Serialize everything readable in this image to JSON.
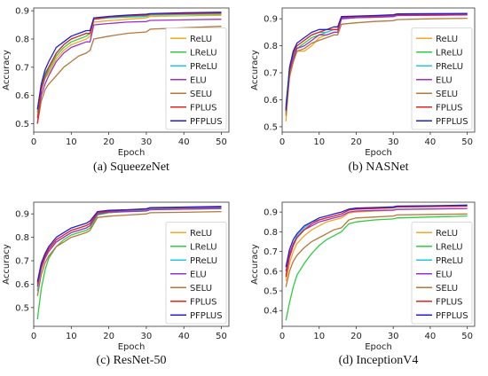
{
  "colors": {
    "ReLU": "#f5a623",
    "LReLU": "#2ecc40",
    "PReLU": "#22c7e8",
    "ELU": "#9b30c8",
    "SELU": "#b5773a",
    "FPLUS": "#e8211d",
    "PFPLUS": "#1f1fd0"
  },
  "chart_data": [
    {
      "type": "line",
      "caption": "(a) SqueezeNet",
      "xlabel": "Epoch",
      "ylabel": "Accuracy",
      "xlim": [
        0,
        52
      ],
      "ylim": [
        0.47,
        0.91
      ],
      "xticks": [
        0,
        10,
        20,
        30,
        40,
        50
      ],
      "yticks": [
        0.5,
        0.6,
        0.7,
        0.8,
        0.9
      ],
      "ytick_labels": [
        "0.5",
        "0.6",
        "0.7",
        "0.8",
        "0.9"
      ],
      "legend_position": "right",
      "x": [
        1,
        2,
        3,
        4,
        6,
        8,
        10,
        12,
        14,
        15,
        16,
        20,
        25,
        30,
        31,
        40,
        50
      ],
      "series": [
        {
          "name": "ReLU",
          "values": [
            0.53,
            0.62,
            0.66,
            0.68,
            0.73,
            0.76,
            0.78,
            0.79,
            0.8,
            0.81,
            0.86,
            0.865,
            0.87,
            0.875,
            0.88,
            0.882,
            0.884
          ]
        },
        {
          "name": "LReLU",
          "values": [
            0.54,
            0.62,
            0.66,
            0.69,
            0.74,
            0.77,
            0.79,
            0.8,
            0.81,
            0.82,
            0.87,
            0.875,
            0.878,
            0.88,
            0.885,
            0.887,
            0.888
          ]
        },
        {
          "name": "PReLU",
          "values": [
            0.55,
            0.63,
            0.68,
            0.7,
            0.75,
            0.78,
            0.8,
            0.81,
            0.82,
            0.82,
            0.87,
            0.876,
            0.88,
            0.882,
            0.886,
            0.888,
            0.89
          ]
        },
        {
          "name": "ELU",
          "values": [
            0.52,
            0.6,
            0.64,
            0.67,
            0.72,
            0.75,
            0.77,
            0.78,
            0.79,
            0.79,
            0.85,
            0.855,
            0.86,
            0.862,
            0.866,
            0.868,
            0.87
          ]
        },
        {
          "name": "SELU",
          "values": [
            0.5,
            0.58,
            0.62,
            0.64,
            0.67,
            0.7,
            0.72,
            0.74,
            0.75,
            0.76,
            0.8,
            0.81,
            0.82,
            0.825,
            0.835,
            0.84,
            0.845
          ]
        },
        {
          "name": "FPLUS",
          "values": [
            0.5,
            0.62,
            0.67,
            0.7,
            0.75,
            0.78,
            0.8,
            0.81,
            0.82,
            0.82,
            0.87,
            0.878,
            0.882,
            0.885,
            0.888,
            0.89,
            0.892
          ]
        },
        {
          "name": "PFPLUS",
          "values": [
            0.55,
            0.64,
            0.69,
            0.72,
            0.77,
            0.79,
            0.81,
            0.82,
            0.83,
            0.83,
            0.875,
            0.88,
            0.885,
            0.888,
            0.89,
            0.893,
            0.895
          ]
        }
      ]
    },
    {
      "type": "line",
      "caption": "(b) NASNet",
      "xlabel": "Epoch",
      "ylabel": "Accuracy",
      "xlim": [
        0,
        52
      ],
      "ylim": [
        0.48,
        0.94
      ],
      "xticks": [
        0,
        10,
        20,
        30,
        40,
        50
      ],
      "yticks": [
        0.5,
        0.6,
        0.7,
        0.8,
        0.9
      ],
      "ytick_labels": [
        "0.5",
        "0.6",
        "0.7",
        "0.8",
        "0.9"
      ],
      "legend_position": "right",
      "x": [
        1,
        2,
        3,
        4,
        6,
        8,
        10,
        12,
        14,
        15,
        16,
        20,
        25,
        30,
        31,
        40,
        50
      ],
      "series": [
        {
          "name": "ReLU",
          "values": [
            0.52,
            0.68,
            0.74,
            0.78,
            0.78,
            0.8,
            0.83,
            0.84,
            0.85,
            0.85,
            0.9,
            0.905,
            0.905,
            0.908,
            0.912,
            0.913,
            0.915
          ]
        },
        {
          "name": "LReLU",
          "values": [
            0.56,
            0.7,
            0.76,
            0.79,
            0.81,
            0.83,
            0.84,
            0.85,
            0.86,
            0.86,
            0.9,
            0.905,
            0.906,
            0.91,
            0.913,
            0.914,
            0.915
          ]
        },
        {
          "name": "PReLU",
          "values": [
            0.58,
            0.71,
            0.77,
            0.8,
            0.82,
            0.84,
            0.85,
            0.85,
            0.86,
            0.86,
            0.905,
            0.908,
            0.91,
            0.912,
            0.915,
            0.916,
            0.918
          ]
        },
        {
          "name": "ELU",
          "values": [
            0.55,
            0.7,
            0.75,
            0.79,
            0.8,
            0.82,
            0.84,
            0.84,
            0.85,
            0.85,
            0.9,
            0.904,
            0.906,
            0.908,
            0.912,
            0.913,
            0.914
          ]
        },
        {
          "name": "SELU",
          "values": [
            0.54,
            0.69,
            0.74,
            0.78,
            0.79,
            0.81,
            0.82,
            0.83,
            0.84,
            0.84,
            0.88,
            0.885,
            0.89,
            0.893,
            0.897,
            0.9,
            0.902
          ]
        },
        {
          "name": "FPLUS",
          "values": [
            0.57,
            0.71,
            0.77,
            0.8,
            0.82,
            0.84,
            0.85,
            0.86,
            0.86,
            0.86,
            0.905,
            0.908,
            0.91,
            0.913,
            0.916,
            0.917,
            0.918
          ]
        },
        {
          "name": "PFPLUS",
          "values": [
            0.56,
            0.72,
            0.78,
            0.81,
            0.83,
            0.85,
            0.86,
            0.86,
            0.87,
            0.87,
            0.908,
            0.91,
            0.912,
            0.915,
            0.918,
            0.919,
            0.92
          ]
        }
      ]
    },
    {
      "type": "line",
      "caption": "(c) ResNet-50",
      "xlabel": "Epoch",
      "ylabel": "Accuracy",
      "xlim": [
        0,
        52
      ],
      "ylim": [
        0.42,
        0.95
      ],
      "xticks": [
        0,
        10,
        20,
        30,
        40,
        50
      ],
      "yticks": [
        0.5,
        0.6,
        0.7,
        0.8,
        0.9
      ],
      "ytick_labels": [
        "0.5",
        "0.6",
        "0.7",
        "0.8",
        "0.9"
      ],
      "legend_position": "right",
      "x": [
        1,
        2,
        3,
        4,
        6,
        8,
        10,
        12,
        14,
        15,
        17,
        20,
        25,
        30,
        31,
        40,
        50
      ],
      "series": [
        {
          "name": "ReLU",
          "values": [
            0.58,
            0.66,
            0.71,
            0.74,
            0.78,
            0.8,
            0.82,
            0.83,
            0.84,
            0.85,
            0.9,
            0.91,
            0.912,
            0.915,
            0.92,
            0.922,
            0.925
          ]
        },
        {
          "name": "LReLU",
          "values": [
            0.45,
            0.58,
            0.66,
            0.71,
            0.76,
            0.79,
            0.81,
            0.82,
            0.83,
            0.84,
            0.895,
            0.905,
            0.91,
            0.912,
            0.918,
            0.92,
            0.922
          ]
        },
        {
          "name": "PReLU",
          "values": [
            0.57,
            0.67,
            0.72,
            0.75,
            0.79,
            0.81,
            0.83,
            0.84,
            0.85,
            0.86,
            0.905,
            0.912,
            0.915,
            0.918,
            0.923,
            0.925,
            0.928
          ]
        },
        {
          "name": "ELU",
          "values": [
            0.59,
            0.67,
            0.71,
            0.74,
            0.78,
            0.8,
            0.82,
            0.83,
            0.84,
            0.85,
            0.9,
            0.908,
            0.91,
            0.913,
            0.918,
            0.92,
            0.923
          ]
        },
        {
          "name": "SELU",
          "values": [
            0.55,
            0.64,
            0.69,
            0.72,
            0.76,
            0.78,
            0.8,
            0.81,
            0.82,
            0.83,
            0.885,
            0.89,
            0.895,
            0.9,
            0.905,
            0.907,
            0.91
          ]
        },
        {
          "name": "FPLUS",
          "values": [
            0.6,
            0.68,
            0.72,
            0.75,
            0.79,
            0.81,
            0.83,
            0.84,
            0.85,
            0.86,
            0.905,
            0.912,
            0.916,
            0.92,
            0.925,
            0.927,
            0.93
          ]
        },
        {
          "name": "PFPLUS",
          "values": [
            0.61,
            0.69,
            0.73,
            0.76,
            0.8,
            0.82,
            0.84,
            0.85,
            0.86,
            0.87,
            0.91,
            0.915,
            0.918,
            0.922,
            0.927,
            0.929,
            0.932
          ]
        }
      ]
    },
    {
      "type": "line",
      "caption": "(d) InceptionV4",
      "xlabel": "Epoch",
      "ylabel": "Accuracy",
      "xlim": [
        0,
        52
      ],
      "ylim": [
        0.32,
        0.95
      ],
      "xticks": [
        0,
        10,
        20,
        30,
        40,
        50
      ],
      "yticks": [
        0.4,
        0.5,
        0.6,
        0.7,
        0.8,
        0.9
      ],
      "ytick_labels": [
        "0.4",
        "0.5",
        "0.6",
        "0.7",
        "0.8",
        "0.9"
      ],
      "legend_position": "right",
      "x": [
        1,
        2,
        3,
        4,
        6,
        8,
        10,
        12,
        14,
        16,
        18,
        20,
        25,
        30,
        31,
        40,
        50
      ],
      "series": [
        {
          "name": "ReLU",
          "values": [
            0.55,
            0.64,
            0.7,
            0.74,
            0.78,
            0.81,
            0.83,
            0.85,
            0.86,
            0.87,
            0.895,
            0.9,
            0.905,
            0.908,
            0.912,
            0.915,
            0.918
          ]
        },
        {
          "name": "LReLU",
          "values": [
            0.35,
            0.44,
            0.52,
            0.58,
            0.64,
            0.69,
            0.73,
            0.76,
            0.78,
            0.8,
            0.84,
            0.85,
            0.86,
            0.865,
            0.87,
            0.875,
            0.88
          ]
        },
        {
          "name": "PReLU",
          "values": [
            0.58,
            0.68,
            0.74,
            0.78,
            0.82,
            0.85,
            0.86,
            0.87,
            0.88,
            0.89,
            0.91,
            0.915,
            0.918,
            0.92,
            0.925,
            0.927,
            0.93
          ]
        },
        {
          "name": "ELU",
          "values": [
            0.6,
            0.69,
            0.74,
            0.77,
            0.81,
            0.83,
            0.85,
            0.86,
            0.87,
            0.88,
            0.9,
            0.905,
            0.908,
            0.91,
            0.914,
            0.916,
            0.918
          ]
        },
        {
          "name": "SELU",
          "values": [
            0.52,
            0.6,
            0.65,
            0.68,
            0.72,
            0.75,
            0.77,
            0.79,
            0.81,
            0.82,
            0.86,
            0.87,
            0.875,
            0.88,
            0.885,
            0.888,
            0.89
          ]
        },
        {
          "name": "FPLUS",
          "values": [
            0.57,
            0.67,
            0.73,
            0.77,
            0.81,
            0.84,
            0.86,
            0.87,
            0.88,
            0.89,
            0.91,
            0.915,
            0.918,
            0.922,
            0.926,
            0.928,
            0.93
          ]
        },
        {
          "name": "PFPLUS",
          "values": [
            0.62,
            0.71,
            0.76,
            0.79,
            0.83,
            0.85,
            0.87,
            0.88,
            0.89,
            0.9,
            0.915,
            0.92,
            0.923,
            0.926,
            0.93,
            0.932,
            0.935
          ]
        }
      ]
    }
  ]
}
